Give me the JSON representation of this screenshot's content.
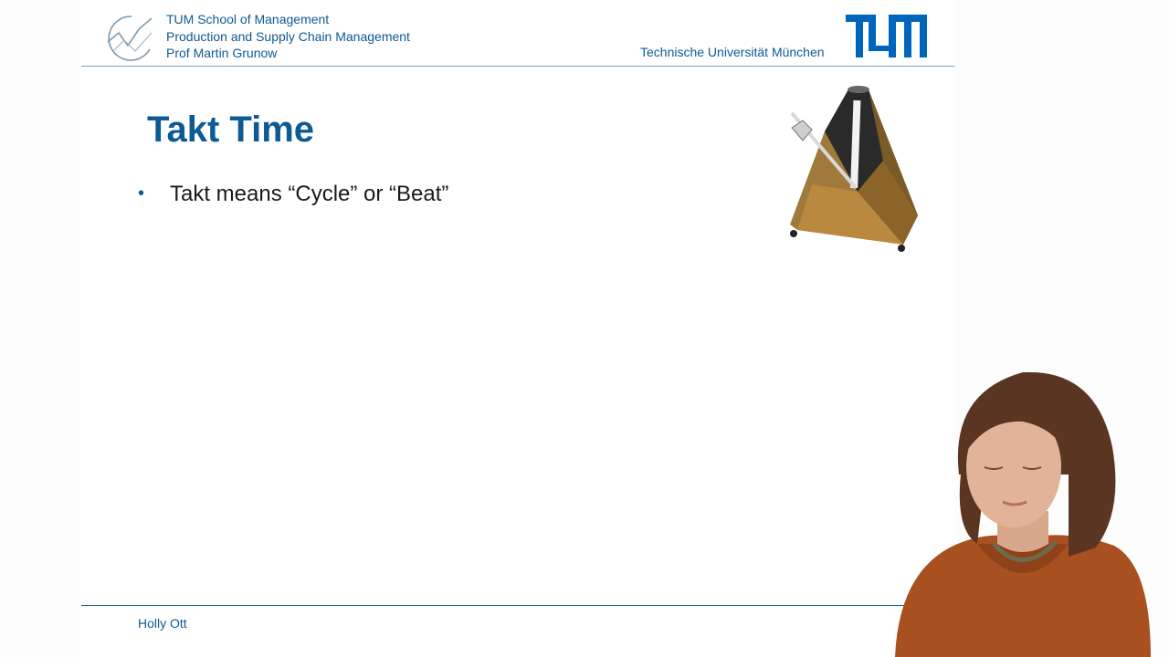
{
  "header": {
    "school": "TUM School of Management",
    "chair": "Production and Supply Chain Management",
    "professor": "Prof Martin Grunow",
    "university": "Technische Universität München"
  },
  "slide": {
    "title": "Takt Time",
    "bullets": [
      "Takt means “Cycle” or “Beat”"
    ]
  },
  "footer": {
    "presenter": "Holly Ott"
  },
  "colors": {
    "tum_blue": "#0e5a94",
    "header_blue": "#0065bd",
    "metronome_wood": "#a07a3c",
    "speaker_sweater": "#a8501f",
    "speaker_hair": "#5a3622"
  },
  "icons": {
    "header_logo": "chart-line-logo-icon",
    "university_logo": "tum-logo-icon",
    "image": "metronome-icon"
  }
}
